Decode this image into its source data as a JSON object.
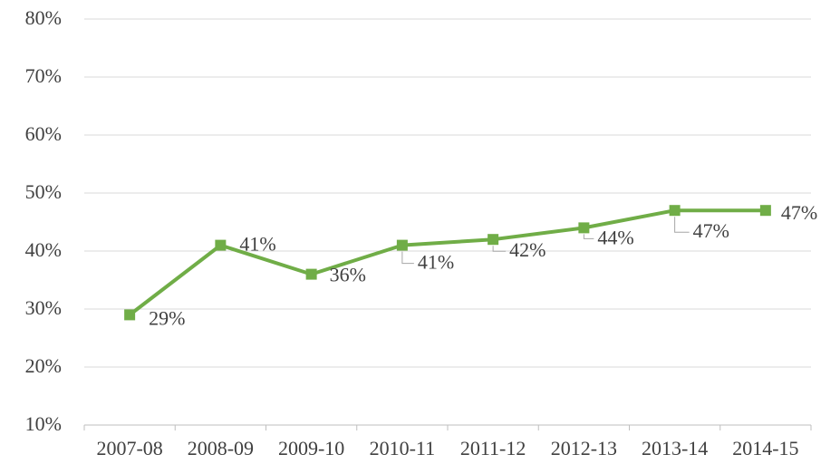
{
  "chart_data": {
    "type": "line",
    "categories": [
      "2007-08",
      "2008-09",
      "2009-10",
      "2010-11",
      "2011-12",
      "2012-13",
      "2013-14",
      "2014-15"
    ],
    "values": [
      29,
      41,
      36,
      41,
      42,
      44,
      47,
      47
    ],
    "value_labels": [
      "29%",
      "41%",
      "36%",
      "41%",
      "42%",
      "44%",
      "47%",
      "47%"
    ],
    "color": "#70ad47",
    "ylim": [
      10,
      80
    ],
    "yticks": [
      {
        "value": 10,
        "label": "10%"
      },
      {
        "value": 20,
        "label": "20%"
      },
      {
        "value": 30,
        "label": "30%"
      },
      {
        "value": 40,
        "label": "40%"
      },
      {
        "value": 50,
        "label": "50%"
      },
      {
        "value": 60,
        "label": "60%"
      },
      {
        "value": 70,
        "label": "70%"
      },
      {
        "value": 80,
        "label": "80%"
      }
    ],
    "grid": true
  }
}
